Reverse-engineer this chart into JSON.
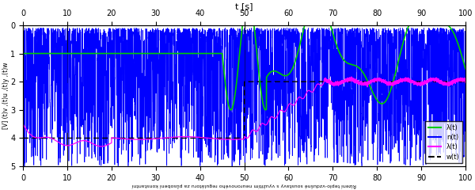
{
  "title_x": "t [s]",
  "ylabel": "[V] (t)v ,(t)u ,(t)y ,(t)w",
  "xlabel_bottom": "Řízení teplo-vzdušné soustavy s využitím neuronového regulátoru za působení konstantní",
  "xlim": [
    0,
    100
  ],
  "ylim": [
    0,
    5
  ],
  "yticks": [
    0,
    1,
    2,
    3,
    4,
    5
  ],
  "xticks": [
    0,
    10,
    20,
    30,
    40,
    50,
    60,
    70,
    80,
    90,
    100
  ],
  "blue_color": "#0000ff",
  "green_color": "#00cc00",
  "magenta_color": "#ff00ff",
  "black_color": "#000000",
  "bg_color": "#ffffff",
  "legend_entries": [
    {
      "label": "λ(t)",
      "color": "#00cc00",
      "ls": "-"
    },
    {
      "label": "n(t)",
      "color": "#0000ff",
      "ls": "-"
    },
    {
      "label": "λ(t)",
      "color": "#ff00ff",
      "ls": "-"
    },
    {
      "label": "w(t)",
      "color": "#000000",
      "ls": "--"
    }
  ]
}
